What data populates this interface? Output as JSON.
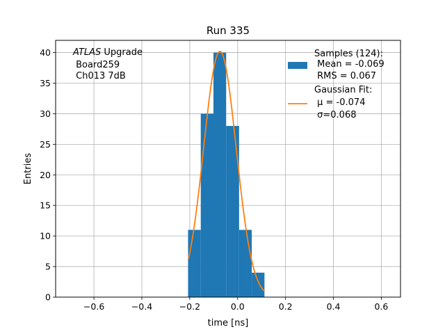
{
  "chart_data": {
    "type": "bar",
    "title": "Run 335",
    "xlabel": "time [ns]",
    "ylabel": "Entries",
    "xlim": [
      -0.76,
      0.68
    ],
    "ylim": [
      0,
      42
    ],
    "xticks": [
      -0.6,
      -0.4,
      -0.2,
      0.0,
      0.2,
      0.4,
      0.6
    ],
    "xtick_labels": [
      "−0.6",
      "−0.4",
      "−0.2",
      "0.0",
      "0.2",
      "0.4",
      "0.6"
    ],
    "yticks": [
      0,
      5,
      10,
      15,
      20,
      25,
      30,
      35,
      40
    ],
    "ytick_labels": [
      "0",
      "5",
      "10",
      "15",
      "20",
      "25",
      "30",
      "35",
      "40"
    ],
    "grid": true,
    "histogram": {
      "color": "#1f77b4",
      "bin_edges": [
        -0.207,
        -0.154,
        -0.101,
        -0.048,
        0.006,
        0.059,
        0.112
      ],
      "counts": [
        11,
        30,
        40,
        28,
        11,
        4
      ]
    },
    "fit": {
      "color": "#ff7f0e",
      "mu": -0.074,
      "sigma": 0.068,
      "amplitude": 40.2,
      "x_range": [
        -0.205,
        0.112
      ]
    },
    "annotation": {
      "line1_italic": "ATLAS",
      "line1_rest": " Upgrade",
      "line2": " Board259",
      "line3": " Ch013 7dB"
    },
    "legend": {
      "placement": "top-right",
      "entries": [
        {
          "kind": "patch",
          "color": "#1f77b4",
          "lines": [
            "Samples (124):",
            " Mean = -0.069",
            " RMS = 0.067"
          ]
        },
        {
          "kind": "line",
          "color": "#ff7f0e",
          "lines": [
            "Gaussian Fit:",
            " μ = -0.074",
            " σ=0.068"
          ]
        }
      ]
    }
  }
}
